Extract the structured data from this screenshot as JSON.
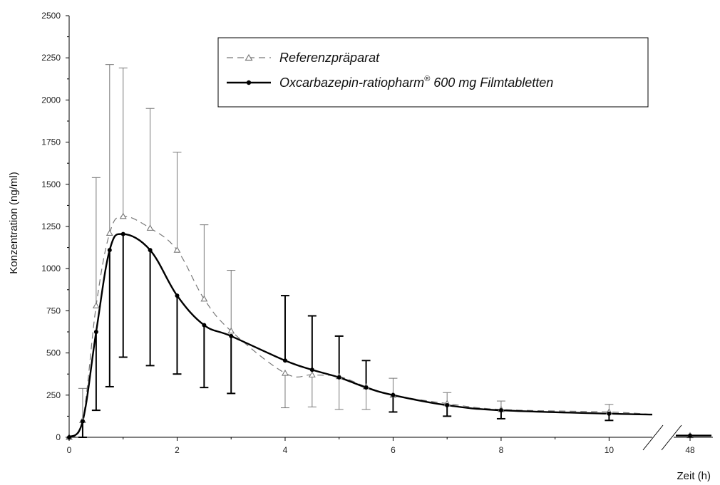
{
  "chart_data": {
    "type": "line",
    "title": "",
    "xlabel": "Zeit (h)",
    "ylabel": "Konzentration (ng/ml)",
    "ylim": [
      0,
      2500
    ],
    "xlim": [
      0,
      10.8
    ],
    "axis_break": true,
    "broken_axis_x": 48,
    "x_ticks": [
      0,
      2,
      4,
      6,
      8,
      10
    ],
    "x_ticks_after_break": [
      48
    ],
    "y_ticks": [
      0,
      250,
      500,
      750,
      1000,
      1250,
      1500,
      1750,
      2000,
      2250,
      2500
    ],
    "grid": false,
    "legend": "top-right",
    "legend_box": true,
    "series": [
      {
        "name": "Referenzpräparat",
        "trademark_sup": "",
        "name_after_sup": "",
        "style": "dashed",
        "marker": "open-triangle",
        "color": "#777777",
        "x": [
          0,
          0.25,
          0.5,
          0.75,
          1,
          1.5,
          2,
          2.5,
          3,
          4,
          4.5,
          5,
          5.5,
          6,
          7,
          8,
          10,
          10.8
        ],
        "y": [
          0,
          100,
          780,
          1210,
          1310,
          1240,
          1110,
          820,
          630,
          380,
          370,
          360,
          300,
          250,
          200,
          165,
          150,
          135
        ],
        "error_upper": [
          0,
          290,
          1540,
          2210,
          2190,
          1950,
          1690,
          1260,
          990,
          380,
          370,
          360,
          300,
          350,
          265,
          215,
          195,
          null
        ],
        "error_lower": [
          0,
          100,
          780,
          1210,
          1310,
          1240,
          1110,
          820,
          630,
          175,
          180,
          165,
          165,
          250,
          200,
          165,
          150,
          null
        ],
        "y_after_break": [
          10
        ]
      },
      {
        "name": "Oxcarbazepin-ratiopharm",
        "trademark_sup": "®",
        "name_after_sup": " 600 mg Filmtabletten",
        "style": "solid",
        "marker": "filled-circle",
        "color": "#000000",
        "x": [
          0,
          0.25,
          0.5,
          0.75,
          1,
          1.5,
          2,
          2.5,
          3,
          4,
          4.5,
          5,
          5.5,
          6,
          7,
          8,
          10,
          10.8
        ],
        "y": [
          0,
          95,
          625,
          1110,
          1205,
          1110,
          840,
          665,
          600,
          455,
          400,
          355,
          295,
          250,
          190,
          160,
          140,
          135
        ],
        "error_upper": [
          0,
          95,
          625,
          1110,
          1205,
          1110,
          840,
          665,
          600,
          840,
          720,
          600,
          455,
          250,
          190,
          160,
          140,
          null
        ],
        "error_lower": [
          0,
          0,
          160,
          300,
          475,
          425,
          375,
          295,
          260,
          455,
          400,
          355,
          295,
          150,
          125,
          110,
          100,
          null
        ],
        "y_after_break": [
          10
        ]
      }
    ]
  }
}
